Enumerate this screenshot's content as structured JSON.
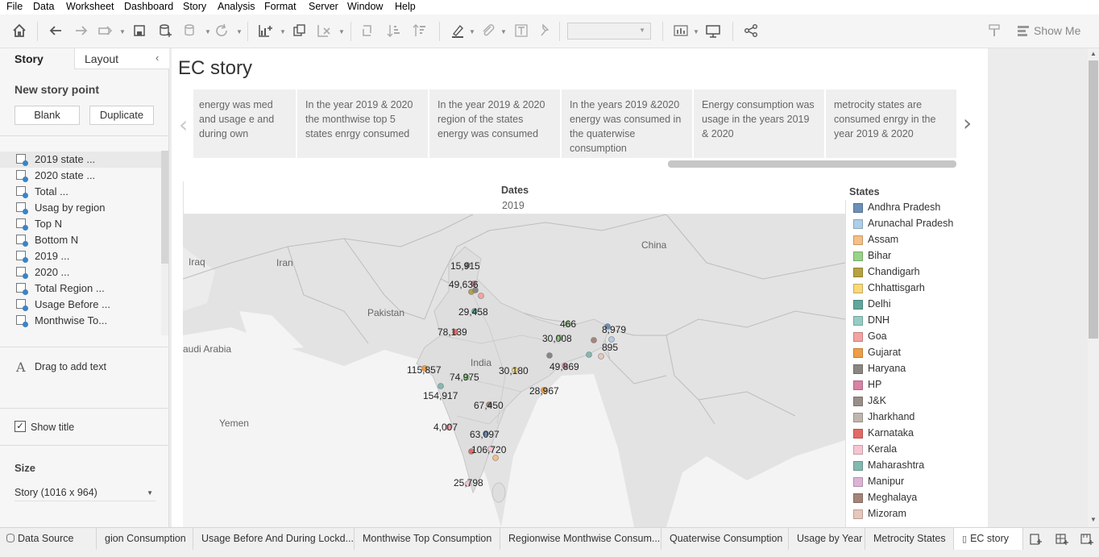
{
  "menu": [
    "File",
    "Data",
    "Worksheet",
    "Dashboard",
    "Story",
    "Analysis",
    "Format",
    "Server",
    "Window",
    "Help"
  ],
  "toolbar": {
    "show_me": "Show Me"
  },
  "left_pane": {
    "tab_story": "Story",
    "tab_layout": "Layout",
    "new_story_point": "New story point",
    "blank": "Blank",
    "duplicate": "Duplicate",
    "sheets": [
      "2019 state ...",
      "2020 state ...",
      "Total ...",
      "Usag by region",
      "Top N",
      "Bottom N",
      "2019 ...",
      "2020 ...",
      "Total Region ...",
      "Usage Before ...",
      "Monthwise To..."
    ],
    "drag_text": "Drag to add text",
    "show_title": "Show title",
    "size_label": "Size",
    "size_value": "Story (1016 x 964)"
  },
  "story": {
    "title": "EC story",
    "points": [
      "energy was med and usage e and during own",
      "In the year 2019 & 2020 the monthwise top 5 states enrgy consumed",
      "In the year 2019 & 2020 region of the states energy was consumed",
      " In the years  2019 &2020 energy was consumed in the quaterwise consumption",
      "Energy consumption was usage in the years 2019 & 2020",
      "metrocity states are consumed enrgy in the year 2019 & 2020"
    ]
  },
  "viz": {
    "header": "Dates",
    "year": "2019",
    "legend_title": "States",
    "map_labels": {
      "china": "China",
      "iraq": "Iraq",
      "iran": "Iran",
      "pakistan": "Pakistan",
      "india": "India",
      "saudi": "audi Arabia",
      "yemen": "Yemen"
    },
    "values": [
      "15,915",
      "49,636",
      "29,458",
      "78,139",
      "466",
      "8,979",
      "30,008",
      "895",
      "115,857",
      "74,975",
      "30,180",
      "49,869",
      "154,917",
      "28,967",
      "67,450",
      "4,007",
      "63,097",
      "106,720",
      "25,798"
    ]
  },
  "legend": [
    {
      "name": "Andhra Pradesh",
      "color": "#6b8fb8"
    },
    {
      "name": "Arunachal Pradesh",
      "color": "#aecde8"
    },
    {
      "name": "Assam",
      "color": "#f5bf85"
    },
    {
      "name": "Bihar",
      "color": "#97d388"
    },
    {
      "name": "Chandigarh",
      "color": "#b5a240"
    },
    {
      "name": "Chhattisgarh",
      "color": "#f8d878"
    },
    {
      "name": "Delhi",
      "color": "#5fa79b"
    },
    {
      "name": "DNH",
      "color": "#95cdc6"
    },
    {
      "name": "Goa",
      "color": "#f4a2a2"
    },
    {
      "name": "Gujarat",
      "color": "#ef9e45"
    },
    {
      "name": "Haryana",
      "color": "#8c8683"
    },
    {
      "name": "HP",
      "color": "#d882a6"
    },
    {
      "name": "J&K",
      "color": "#998e88"
    },
    {
      "name": "Jharkhand",
      "color": "#c0b6b0"
    },
    {
      "name": "Karnataka",
      "color": "#e36a64"
    },
    {
      "name": "Kerala",
      "color": "#f6c5d2"
    },
    {
      "name": "Maharashtra",
      "color": "#83b9b1"
    },
    {
      "name": "Manipur",
      "color": "#dcb3d6"
    },
    {
      "name": "Meghalaya",
      "color": "#a4857a"
    },
    {
      "name": "Mizoram",
      "color": "#e7c7bc"
    }
  ],
  "bottom_tabs": [
    "Data Source",
    "gion Consumption",
    "Usage Before And During Lockd...",
    "Monthwise Top Consumption",
    "Regionwise Monthwise Consum...",
    "Quaterwise Consumption",
    "Usage by Year",
    "Metrocity States",
    "EC story"
  ]
}
